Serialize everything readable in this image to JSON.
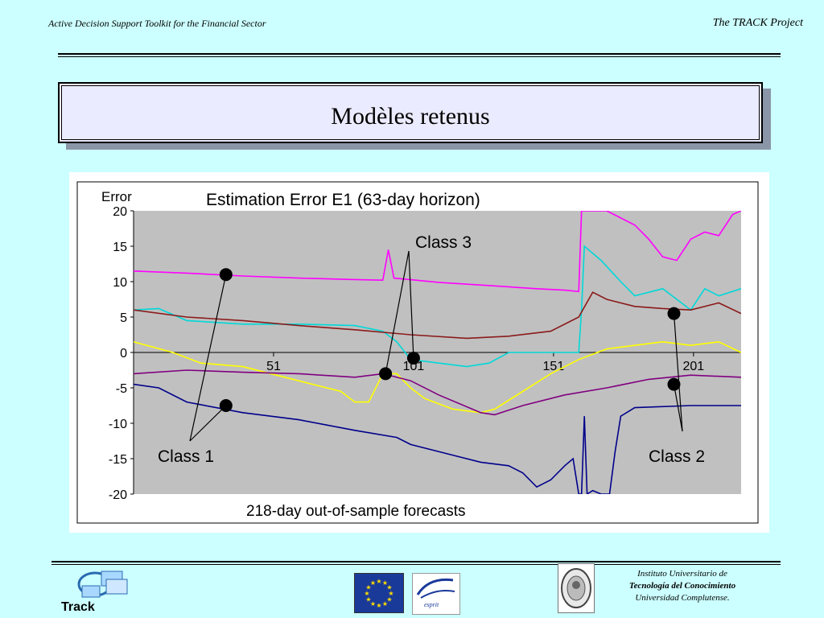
{
  "header": {
    "left_text": "Active Decision Support Toolkit for the Financial Sector",
    "right_text": "The TRACK Project"
  },
  "slide": {
    "title": "Modèles retenus"
  },
  "chart_data": {
    "type": "line",
    "title": "Estimation Error E1 (63-day horizon)",
    "xlabel": "218-day out-of-sample forecasts",
    "ylabel": "Error",
    "xlim": [
      1,
      218
    ],
    "ylim": [
      -20,
      20
    ],
    "x_ticks": [
      51,
      101,
      151,
      201
    ],
    "y_ticks": [
      20,
      15,
      10,
      5,
      0,
      -5,
      -10,
      -15,
      -20
    ],
    "grid": false,
    "series": [
      {
        "color": "#ff00ff",
        "points": [
          [
            1,
            11.5
          ],
          [
            20,
            11.2
          ],
          [
            40,
            10.8
          ],
          [
            60,
            10.5
          ],
          [
            80,
            10.3
          ],
          [
            90,
            10.2
          ],
          [
            92,
            14.5
          ],
          [
            94,
            10.5
          ],
          [
            110,
            9.9
          ],
          [
            130,
            9.4
          ],
          [
            145,
            9.0
          ],
          [
            155,
            8.8
          ],
          [
            160,
            8.6
          ],
          [
            161,
            20
          ],
          [
            162,
            20
          ],
          [
            170,
            20
          ],
          [
            180,
            18
          ],
          [
            185,
            16
          ],
          [
            190,
            13.5
          ],
          [
            195,
            13
          ],
          [
            200,
            16
          ],
          [
            205,
            17
          ],
          [
            210,
            16.5
          ],
          [
            215,
            19.5
          ],
          [
            218,
            20
          ]
        ]
      },
      {
        "color": "#00d8d8",
        "points": [
          [
            1,
            6
          ],
          [
            10,
            6.2
          ],
          [
            20,
            4.5
          ],
          [
            40,
            4
          ],
          [
            60,
            4
          ],
          [
            80,
            3.8
          ],
          [
            90,
            3
          ],
          [
            95,
            1.5
          ],
          [
            100,
            -1
          ],
          [
            110,
            -1.5
          ],
          [
            120,
            -2
          ],
          [
            128,
            -1.5
          ],
          [
            135,
            0
          ],
          [
            150,
            0
          ],
          [
            160,
            0
          ],
          [
            161,
            6
          ],
          [
            162,
            15
          ],
          [
            168,
            13
          ],
          [
            175,
            10
          ],
          [
            180,
            8
          ],
          [
            190,
            9
          ],
          [
            200,
            6
          ],
          [
            205,
            9
          ],
          [
            210,
            8
          ],
          [
            218,
            9
          ]
        ]
      },
      {
        "color": "#8b1a1a",
        "points": [
          [
            1,
            6
          ],
          [
            20,
            5
          ],
          [
            40,
            4.5
          ],
          [
            60,
            3.8
          ],
          [
            80,
            3.2
          ],
          [
            100,
            2.5
          ],
          [
            120,
            2
          ],
          [
            135,
            2.3
          ],
          [
            150,
            3
          ],
          [
            160,
            5
          ],
          [
            165,
            8.5
          ],
          [
            170,
            7.5
          ],
          [
            180,
            6.5
          ],
          [
            190,
            6.2
          ],
          [
            200,
            6
          ],
          [
            210,
            7
          ],
          [
            218,
            5.5
          ]
        ]
      },
      {
        "color": "#ffff00",
        "points": [
          [
            1,
            1.5
          ],
          [
            15,
            0
          ],
          [
            25,
            -1.5
          ],
          [
            40,
            -2
          ],
          [
            55,
            -3.5
          ],
          [
            65,
            -4.5
          ],
          [
            75,
            -5.5
          ],
          [
            80,
            -7
          ],
          [
            85,
            -7
          ],
          [
            90,
            -3
          ],
          [
            95,
            -3
          ],
          [
            100,
            -5
          ],
          [
            105,
            -6.5
          ],
          [
            115,
            -8
          ],
          [
            125,
            -8.5
          ],
          [
            130,
            -8
          ],
          [
            140,
            -5.5
          ],
          [
            150,
            -3
          ],
          [
            160,
            -1
          ],
          [
            170,
            0.5
          ],
          [
            180,
            1
          ],
          [
            190,
            1.5
          ],
          [
            200,
            1
          ],
          [
            210,
            1.5
          ],
          [
            218,
            0
          ]
        ]
      },
      {
        "color": "#800080",
        "points": [
          [
            1,
            -3
          ],
          [
            20,
            -2.5
          ],
          [
            40,
            -2.8
          ],
          [
            60,
            -3
          ],
          [
            80,
            -3.5
          ],
          [
            90,
            -3
          ],
          [
            100,
            -4
          ],
          [
            110,
            -6
          ],
          [
            125,
            -8.5
          ],
          [
            130,
            -8.8
          ],
          [
            140,
            -7.5
          ],
          [
            155,
            -6
          ],
          [
            170,
            -5
          ],
          [
            185,
            -3.8
          ],
          [
            200,
            -3.2
          ],
          [
            218,
            -3.5
          ]
        ]
      },
      {
        "color": "#00008b",
        "points": [
          [
            1,
            -4.5
          ],
          [
            10,
            -5
          ],
          [
            20,
            -7
          ],
          [
            40,
            -8.5
          ],
          [
            60,
            -9.5
          ],
          [
            80,
            -11
          ],
          [
            95,
            -12
          ],
          [
            100,
            -13
          ],
          [
            115,
            -14.5
          ],
          [
            125,
            -15.5
          ],
          [
            135,
            -16
          ],
          [
            140,
            -17
          ],
          [
            145,
            -19
          ],
          [
            150,
            -18
          ],
          [
            155,
            -16
          ],
          [
            158,
            -15
          ],
          [
            160,
            -20
          ],
          [
            161,
            -20
          ],
          [
            162,
            -9
          ],
          [
            163,
            -20
          ],
          [
            165,
            -19.5
          ],
          [
            168,
            -20
          ],
          [
            171,
            -20
          ],
          [
            173,
            -14
          ],
          [
            175,
            -9
          ],
          [
            180,
            -7.8
          ],
          [
            200,
            -7.5
          ],
          [
            218,
            -7.5
          ]
        ]
      }
    ],
    "markers": [
      {
        "x": 34,
        "y": 11
      },
      {
        "x": 34,
        "y": -7.5
      },
      {
        "x": 91,
        "y": -3
      },
      {
        "x": 101,
        "y": -0.8
      },
      {
        "x": 194,
        "y": 5.5
      },
      {
        "x": 194,
        "y": -4.5
      }
    ],
    "annotations": [
      {
        "text": "Class 1",
        "target_markers": [
          0,
          1
        ]
      },
      {
        "text": "Class 3",
        "target_markers": [
          2,
          3
        ]
      },
      {
        "text": "Class 2",
        "target_markers": [
          4,
          5
        ]
      }
    ]
  },
  "footer": {
    "track_label": "Track",
    "esprit_label": "esprit",
    "institute_line1": "Instituto  Universitario de",
    "institute_line2": "Tecnología del  Conocimiento",
    "institute_line3": "Universidad Complutense."
  }
}
